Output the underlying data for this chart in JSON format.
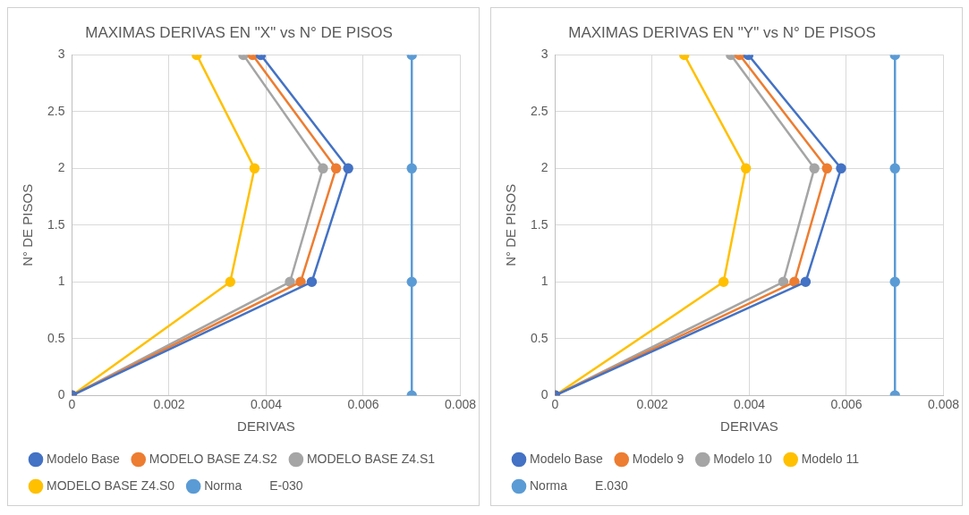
{
  "chart_data": [
    {
      "type": "line",
      "title": "MAXIMAS DERIVAS EN \"X\" vs N° DE PISOS",
      "xlabel": "DERIVAS",
      "ylabel": "N° DE PISOS",
      "xlim": [
        0,
        0.008
      ],
      "xticks": [
        0,
        0.002,
        0.004,
        0.006,
        0.008
      ],
      "ylim": [
        0,
        3
      ],
      "yticks": [
        0,
        0.5,
        1,
        1.5,
        2,
        2.5,
        3
      ],
      "grid": true,
      "legend": "bottom",
      "marker": "circle",
      "line_style": "solid",
      "series": [
        {
          "name": "Modelo Base",
          "color": "#4472c4",
          "x": [
            0,
            0.00494,
            0.00569,
            0.00389
          ],
          "values": [
            0,
            1,
            2,
            3
          ]
        },
        {
          "name": "MODELO BASE Z4.S2",
          "color": "#ed7d31",
          "x": [
            0,
            0.00471,
            0.00544,
            0.00372
          ],
          "values": [
            0,
            1,
            2,
            3
          ]
        },
        {
          "name": "MODELO BASE Z4.S1",
          "color": "#a5a5a5",
          "x": [
            0,
            0.00449,
            0.00517,
            0.00353
          ],
          "values": [
            0,
            1,
            2,
            3
          ]
        },
        {
          "name": "MODELO BASE Z4.S0",
          "color": "#ffc000",
          "x": [
            0,
            0.00326,
            0.00376,
            0.00257
          ],
          "values": [
            0,
            1,
            2,
            3
          ]
        },
        {
          "name": "Norma        E-030",
          "color": "#5b9bd5",
          "x": [
            0.007,
            0.007,
            0.007,
            0.007
          ],
          "values": [
            0,
            1,
            2,
            3
          ]
        }
      ]
    },
    {
      "type": "line",
      "title": "MAXIMAS DERIVAS EN \"Y\" vs N° DE PISOS",
      "xlabel": "DERIVAS",
      "ylabel": "N° DE PISOS",
      "xlim": [
        0,
        0.008
      ],
      "xticks": [
        0,
        0.002,
        0.004,
        0.006,
        0.008
      ],
      "ylim": [
        0,
        3
      ],
      "yticks": [
        0,
        0.5,
        1,
        1.5,
        2,
        2.5,
        3
      ],
      "grid": true,
      "legend": "bottom",
      "marker": "circle",
      "line_style": "solid",
      "series": [
        {
          "name": "Modelo Base",
          "color": "#4472c4",
          "x": [
            0,
            0.00516,
            0.00589,
            0.00398
          ],
          "values": [
            0,
            1,
            2,
            3
          ]
        },
        {
          "name": "Modelo 9",
          "color": "#ed7d31",
          "x": [
            0,
            0.00493,
            0.0056,
            0.0038
          ],
          "values": [
            0,
            1,
            2,
            3
          ]
        },
        {
          "name": "Modelo 10",
          "color": "#a5a5a5",
          "x": [
            0,
            0.0047,
            0.00534,
            0.00362
          ],
          "values": [
            0,
            1,
            2,
            3
          ]
        },
        {
          "name": "Modelo 11",
          "color": "#ffc000",
          "x": [
            0,
            0.00347,
            0.00393,
            0.00266
          ],
          "values": [
            0,
            1,
            2,
            3
          ]
        },
        {
          "name": "Norma        E.030",
          "color": "#5b9bd5",
          "x": [
            0.007,
            0.007,
            0.007,
            0.007
          ],
          "values": [
            0,
            1,
            2,
            3
          ]
        }
      ]
    }
  ]
}
